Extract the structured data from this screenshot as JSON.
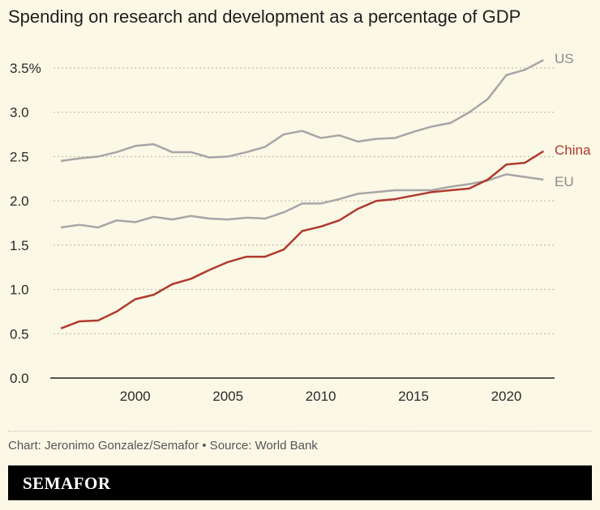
{
  "chart_data": {
    "type": "line",
    "title": "Spending on research and development as a percentage of GDP",
    "x": [
      1996,
      1997,
      1998,
      1999,
      2000,
      2001,
      2002,
      2003,
      2004,
      2005,
      2006,
      2007,
      2008,
      2009,
      2010,
      2011,
      2012,
      2013,
      2014,
      2015,
      2016,
      2017,
      2018,
      2019,
      2020,
      2021,
      2022
    ],
    "xticks": [
      2000,
      2005,
      2010,
      2015,
      2020
    ],
    "yticks": [
      0,
      0.5,
      1,
      1.5,
      2,
      2.5,
      3,
      3.5
    ],
    "ytick_labels": [
      "0.0",
      "0.5",
      "1.0",
      "1.5",
      "2.0",
      "2.5",
      "3.0",
      "3.5%"
    ],
    "xlim": [
      1995.6,
      2022.6
    ],
    "ylim": [
      0,
      3.5
    ],
    "grid": "horizontal dotted",
    "series": [
      {
        "name": "US",
        "color": "#a6a6a6",
        "values": [
          2.45,
          2.48,
          2.5,
          2.55,
          2.62,
          2.64,
          2.55,
          2.55,
          2.49,
          2.5,
          2.55,
          2.61,
          2.75,
          2.79,
          2.71,
          2.74,
          2.67,
          2.7,
          2.71,
          2.78,
          2.84,
          2.88,
          3.0,
          3.15,
          3.42,
          3.48,
          3.59
        ]
      },
      {
        "name": "EU",
        "color": "#a6a6a6",
        "values": [
          1.7,
          1.73,
          1.7,
          1.78,
          1.76,
          1.82,
          1.79,
          1.83,
          1.8,
          1.79,
          1.81,
          1.8,
          1.87,
          1.97,
          1.97,
          2.02,
          2.08,
          2.1,
          2.12,
          2.12,
          2.12,
          2.16,
          2.19,
          2.23,
          2.3,
          2.27,
          2.24
        ]
      },
      {
        "name": "China",
        "color": "#b03a2e",
        "values": [
          0.56,
          0.64,
          0.65,
          0.75,
          0.89,
          0.94,
          1.06,
          1.12,
          1.22,
          1.31,
          1.37,
          1.37,
          1.45,
          1.66,
          1.71,
          1.78,
          1.91,
          2.0,
          2.02,
          2.06,
          2.1,
          2.12,
          2.14,
          2.24,
          2.41,
          2.43,
          2.56
        ]
      }
    ]
  },
  "footer": {
    "credit": "Chart: Jeronimo Gonzalez/Semafor • Source: World Bank",
    "brand": "SEMAFOR"
  },
  "colors": {
    "background": "#fcf8e6",
    "china": "#b03a2e",
    "other": "#a6a6a6"
  }
}
